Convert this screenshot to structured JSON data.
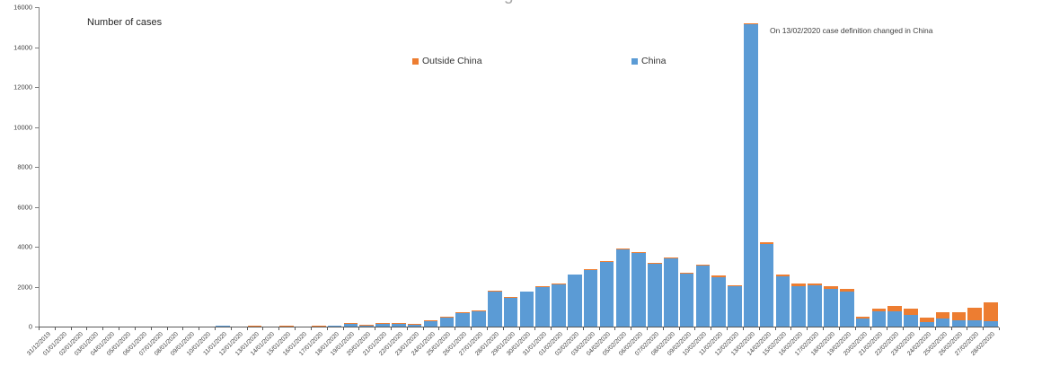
{
  "chart_data": {
    "type": "bar",
    "stacked": true,
    "title_fragment": "g",
    "inner_label": "Number of cases",
    "annotation": "On 13/02/2020 case definition changed in China",
    "legend_position": "top-inside",
    "grid": false,
    "ylim": [
      0,
      16000
    ],
    "ytick_interval": 2000,
    "ytick_labels": [
      "0",
      "2000",
      "4000",
      "6000",
      "8000",
      "10000",
      "12000",
      "14000",
      "16000"
    ],
    "legend": [
      {
        "name": "Outside China",
        "color": "#ED7D31"
      },
      {
        "name": "China",
        "color": "#5B9BD5"
      }
    ],
    "categories": [
      "31/12/2019",
      "01/01/2020",
      "02/01/2020",
      "03/01/2020",
      "04/01/2020",
      "05/01/2020",
      "06/01/2020",
      "07/01/2020",
      "08/01/2020",
      "09/01/2020",
      "10/01/2020",
      "11/01/2020",
      "12/01/2020",
      "13/01/2020",
      "14/01/2020",
      "15/01/2020",
      "16/01/2020",
      "17/01/2020",
      "18/01/2020",
      "19/01/2020",
      "20/01/2020",
      "21/01/2020",
      "22/01/2020",
      "23/01/2020",
      "24/01/2020",
      "25/01/2020",
      "26/01/2020",
      "27/01/2020",
      "28/01/2020",
      "29/01/2020",
      "30/01/2020",
      "31/01/2020",
      "01/02/2020",
      "02/02/2020",
      "03/02/2020",
      "04/02/2020",
      "05/02/2020",
      "06/02/2020",
      "07/02/2020",
      "08/02/2020",
      "09/02/2020",
      "10/02/2020",
      "11/02/2020",
      "12/02/2020",
      "13/02/2020",
      "14/02/2020",
      "15/02/2020",
      "16/02/2020",
      "17/02/2020",
      "18/02/2020",
      "19/02/2020",
      "20/02/2020",
      "21/02/2020",
      "22/02/2020",
      "23/02/2020",
      "24/02/2020",
      "25/02/2020",
      "26/02/2020",
      "27/02/2020",
      "28/02/2020"
    ],
    "series": [
      {
        "name": "China",
        "color": "#5B9BD5",
        "values": [
          0,
          0,
          0,
          0,
          0,
          0,
          0,
          0,
          0,
          0,
          0,
          41,
          0,
          0,
          0,
          0,
          0,
          0,
          59,
          136,
          19,
          151,
          140,
          97,
          259,
          441,
          665,
          769,
          1771,
          1459,
          1737,
          1982,
          2102,
          2590,
          2829,
          3235,
          3887,
          3694,
          3151,
          3401,
          2656,
          3062,
          2484,
          2022,
          15141,
          4156,
          2538,
          2007,
          2051,
          1891,
          1749,
          394,
          780,
          750,
          600,
          214,
          420,
          300,
          330,
          260
        ]
      },
      {
        "name": "Outside China",
        "color": "#ED7D31",
        "values": [
          0,
          0,
          0,
          0,
          0,
          0,
          0,
          0,
          0,
          0,
          0,
          0,
          0,
          1,
          0,
          1,
          0,
          3,
          0,
          2,
          1,
          6,
          2,
          11,
          9,
          13,
          15,
          7,
          25,
          10,
          20,
          26,
          36,
          17,
          25,
          27,
          30,
          34,
          45,
          52,
          37,
          45,
          100,
          60,
          47,
          56,
          81,
          165,
          100,
          117,
          131,
          104,
          110,
          290,
          310,
          230,
          290,
          430,
          630,
          970
        ]
      }
    ]
  }
}
